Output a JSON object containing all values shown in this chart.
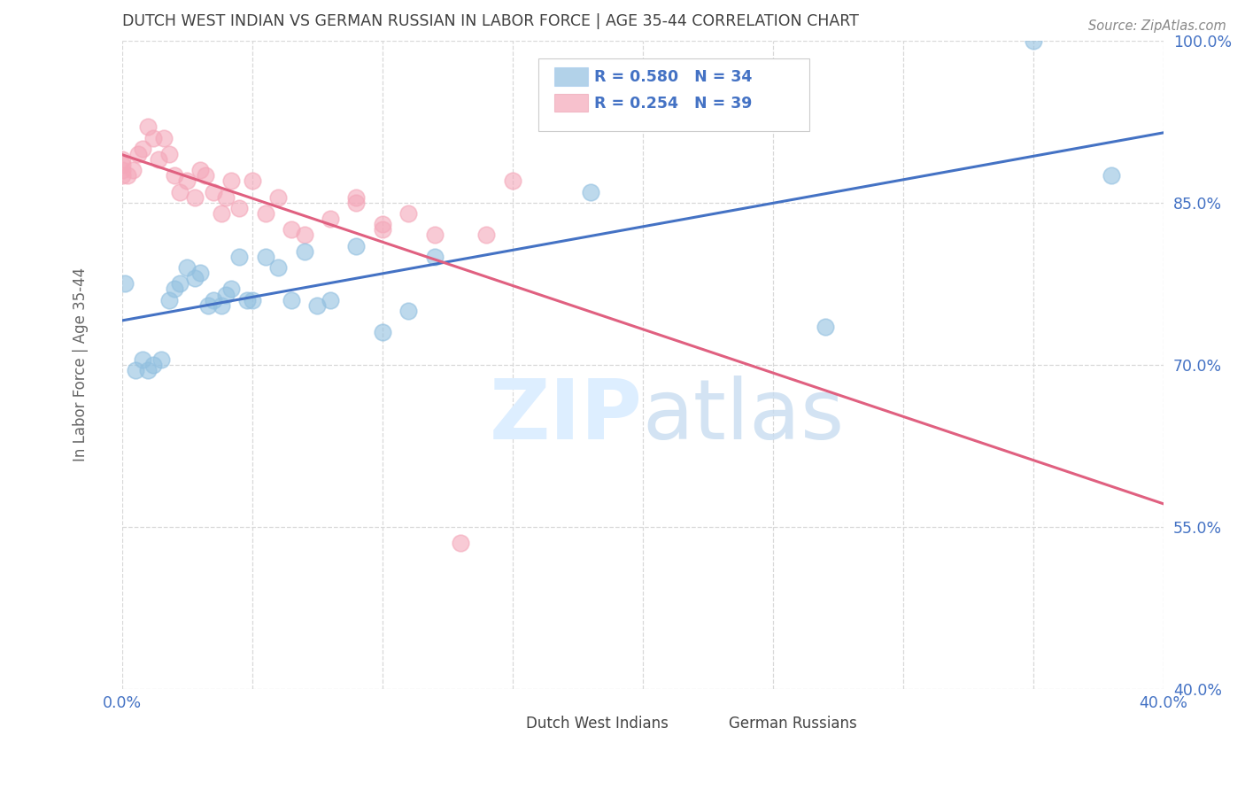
{
  "title": "DUTCH WEST INDIAN VS GERMAN RUSSIAN IN LABOR FORCE | AGE 35-44 CORRELATION CHART",
  "source": "Source: ZipAtlas.com",
  "ylabel": "In Labor Force | Age 35-44",
  "xlim": [
    0.0,
    0.4
  ],
  "ylim": [
    0.4,
    1.0
  ],
  "yticks": [
    0.4,
    0.55,
    0.7,
    0.85,
    1.0
  ],
  "ytick_labels": [
    "40.0%",
    "55.0%",
    "70.0%",
    "85.0%",
    "100.0%"
  ],
  "xtick_labels_show": [
    "0.0%",
    "40.0%"
  ],
  "blue_color": "#92c0e0",
  "pink_color": "#f4a7b9",
  "blue_line_color": "#4472c4",
  "pink_line_color": "#e06080",
  "legend_text_color": "#4472c4",
  "title_color": "#404040",
  "watermark_color": "#ddeeff",
  "blue_R": 0.58,
  "blue_N": 34,
  "pink_R": 0.254,
  "pink_N": 39,
  "blue_x": [
    0.001,
    0.005,
    0.008,
    0.01,
    0.012,
    0.015,
    0.018,
    0.02,
    0.022,
    0.025,
    0.028,
    0.03,
    0.033,
    0.035,
    0.038,
    0.04,
    0.042,
    0.045,
    0.048,
    0.05,
    0.055,
    0.06,
    0.065,
    0.07,
    0.075,
    0.08,
    0.09,
    0.1,
    0.11,
    0.12,
    0.18,
    0.27,
    0.35,
    0.38
  ],
  "blue_y": [
    0.775,
    0.695,
    0.705,
    0.695,
    0.7,
    0.705,
    0.76,
    0.77,
    0.775,
    0.79,
    0.78,
    0.785,
    0.755,
    0.76,
    0.755,
    0.765,
    0.77,
    0.8,
    0.76,
    0.76,
    0.8,
    0.79,
    0.76,
    0.805,
    0.755,
    0.76,
    0.81,
    0.73,
    0.75,
    0.8,
    0.86,
    0.735,
    1.0,
    0.875
  ],
  "pink_x": [
    0.0,
    0.0,
    0.0,
    0.0,
    0.002,
    0.004,
    0.006,
    0.008,
    0.01,
    0.012,
    0.014,
    0.016,
    0.018,
    0.02,
    0.022,
    0.025,
    0.028,
    0.03,
    0.032,
    0.035,
    0.038,
    0.04,
    0.042,
    0.045,
    0.05,
    0.055,
    0.06,
    0.065,
    0.07,
    0.08,
    0.09,
    0.1,
    0.11,
    0.12,
    0.13,
    0.14,
    0.15,
    0.09,
    0.1
  ],
  "pink_y": [
    0.875,
    0.88,
    0.885,
    0.89,
    0.875,
    0.88,
    0.895,
    0.9,
    0.92,
    0.91,
    0.89,
    0.91,
    0.895,
    0.875,
    0.86,
    0.87,
    0.855,
    0.88,
    0.875,
    0.86,
    0.84,
    0.855,
    0.87,
    0.845,
    0.87,
    0.84,
    0.855,
    0.825,
    0.82,
    0.835,
    0.855,
    0.83,
    0.84,
    0.82,
    0.535,
    0.82,
    0.87,
    0.85,
    0.825
  ],
  "grid_color": "#d8d8d8",
  "bg_color": "#ffffff"
}
